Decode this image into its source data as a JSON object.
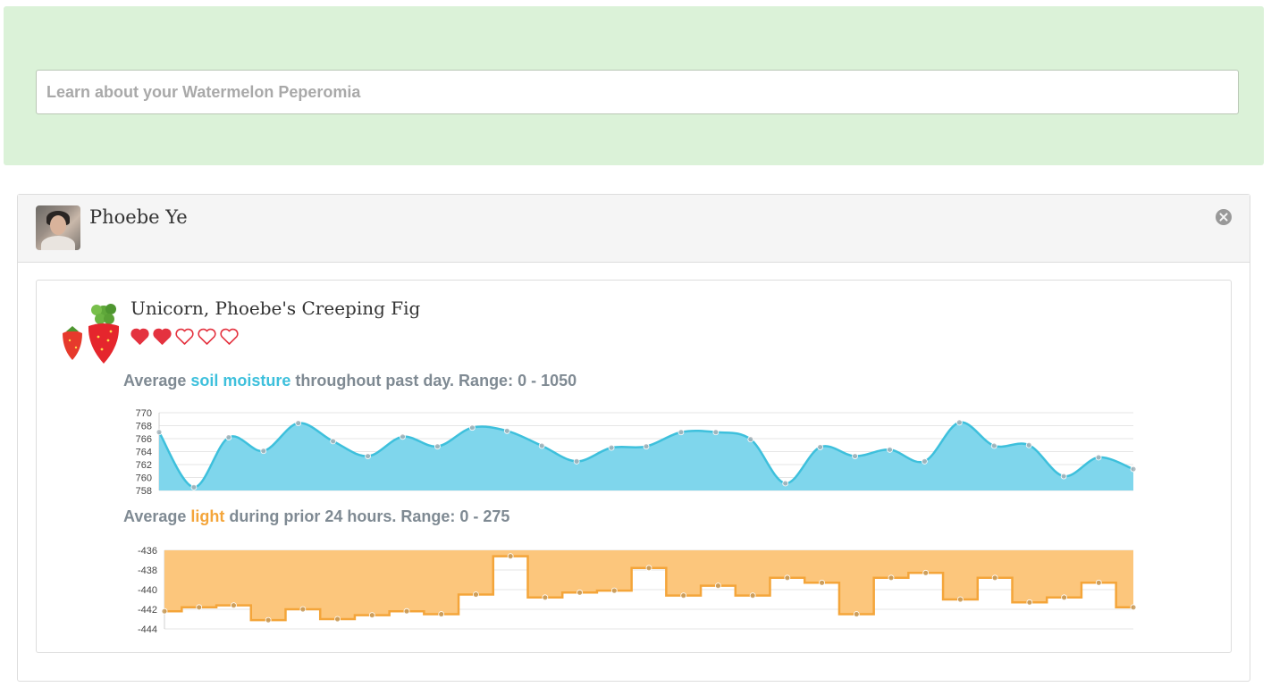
{
  "search": {
    "placeholder": "Learn about your Watermelon Peperomia",
    "value": ""
  },
  "user": {
    "name": "Phoebe Ye"
  },
  "plant": {
    "name": "Unicorn, Phoebe's Creeping Fig",
    "rating": {
      "filled": 2,
      "total": 5
    }
  },
  "soil_title": {
    "prefix": "Average ",
    "highlight": "soil moisture",
    "suffix": " throughout past day. Range: 0 - 1050"
  },
  "light_title": {
    "prefix": "Average ",
    "highlight": "light",
    "suffix": " during prior 24 hours. Range: 0 - 275"
  },
  "colors": {
    "soil_line": "#3ec0dc",
    "soil_fill": "#7fd6ec",
    "light_line": "#f4a53a",
    "light_fill": "#fcc67c",
    "heart": "#e4323f"
  },
  "chart_data": [
    {
      "type": "area",
      "interpolation": "smooth",
      "ylim": [
        758,
        770
      ],
      "yticks": [
        770,
        768,
        766,
        764,
        762,
        760,
        758
      ],
      "grid": true,
      "series": [
        {
          "values": [
            767,
            758.5,
            766.2,
            764.1,
            768.4,
            765.6,
            763.3,
            766.3,
            764.8,
            767.7,
            767.2,
            764.9,
            762.5,
            764.6,
            764.8,
            767,
            767,
            765.9,
            759.1,
            764.7,
            763.3,
            764.3,
            762.5,
            768.5,
            764.9,
            765,
            760.2,
            763.1,
            761.3
          ]
        }
      ]
    },
    {
      "type": "area",
      "interpolation": "step",
      "ylim": [
        -444,
        -436
      ],
      "yticks": [
        -436,
        -438,
        -440,
        -442,
        -444
      ],
      "grid": true,
      "series": [
        {
          "values": [
            -442.2,
            -441.8,
            -441.6,
            -443.1,
            -442,
            -443,
            -442.6,
            -442.2,
            -442.5,
            -440.5,
            -436.6,
            -440.8,
            -440.3,
            -440.1,
            -437.8,
            -440.6,
            -439.6,
            -440.6,
            -438.8,
            -439.3,
            -442.5,
            -438.8,
            -438.3,
            -441,
            -438.8,
            -441.3,
            -440.8,
            -439.3,
            -441.8
          ]
        }
      ]
    }
  ]
}
